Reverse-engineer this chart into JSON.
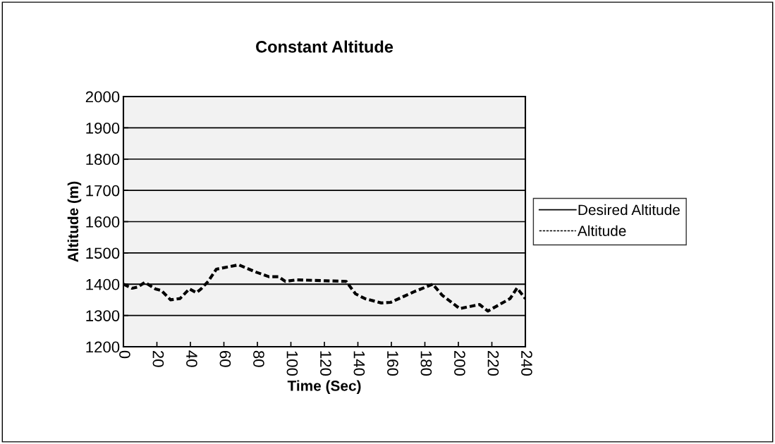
{
  "chart_data": {
    "type": "line",
    "title": "Constant Altitude",
    "xlabel": "Time (Sec)",
    "ylabel": "Altitude (m)",
    "xlim": [
      0,
      240
    ],
    "xticks": [
      0,
      20,
      40,
      60,
      80,
      100,
      120,
      140,
      160,
      180,
      200,
      220,
      240
    ],
    "ylim": [
      1200,
      2000
    ],
    "yticks": [
      1200,
      1300,
      1400,
      1500,
      1600,
      1700,
      1800,
      1900,
      2000
    ],
    "grid": "y",
    "legend": "right",
    "series": [
      {
        "name": "Desired Altitude",
        "color": "#000000",
        "line_style": "solid",
        "x": [
          0,
          240
        ],
        "values": [
          1400,
          1400
        ]
      },
      {
        "name": "Altitude",
        "color": "#000000",
        "line_style": "dashed",
        "x": [
          0,
          5.2,
          8.6,
          12.8,
          19.1,
          22.6,
          28.2,
          33.8,
          39.4,
          43.6,
          46.4,
          50.6,
          55.5,
          68.8,
          78.5,
          86.9,
          92.5,
          96.7,
          103.7,
          120.5,
          133,
          138.6,
          144.2,
          154,
          159.6,
          173.6,
          184.7,
          190.3,
          200.8,
          212.7,
          217.6,
          230.9,
          235,
          240
        ],
        "values": [
          1400,
          1387,
          1391,
          1406,
          1385,
          1380,
          1350,
          1354,
          1385,
          1373,
          1385,
          1409,
          1448,
          1462,
          1440,
          1424,
          1424,
          1409,
          1414,
          1411,
          1409,
          1369,
          1354,
          1340,
          1342,
          1376,
          1400,
          1365,
          1322,
          1335,
          1314,
          1354,
          1388,
          1354
        ]
      }
    ]
  }
}
